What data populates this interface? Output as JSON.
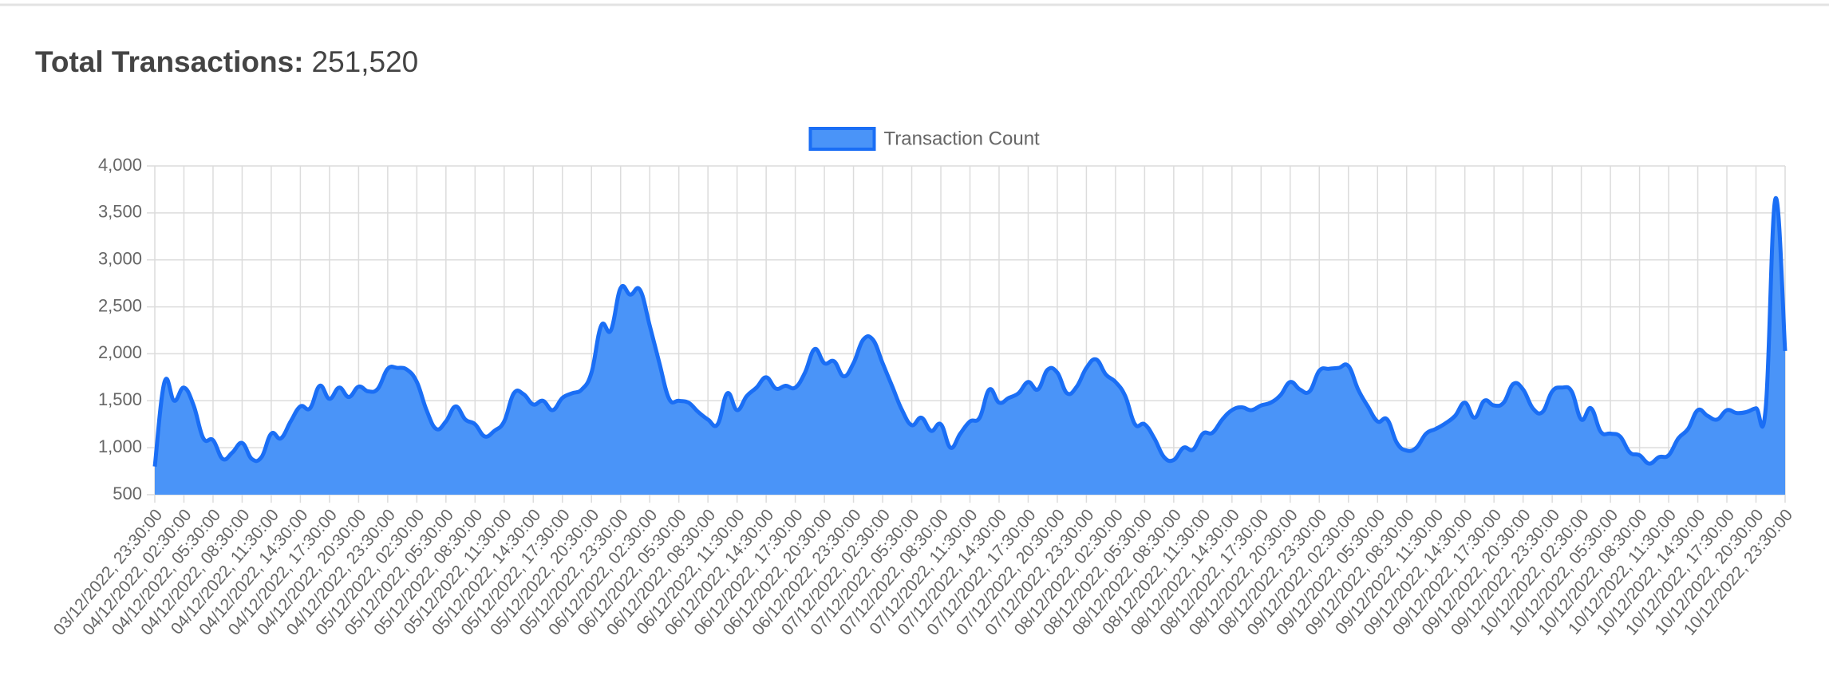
{
  "chart_data": {
    "type": "line",
    "title": "Total Transactions:",
    "title_value": "251,520",
    "legend": "top",
    "grid": true,
    "ylim": [
      500,
      4000
    ],
    "yticks": [
      500,
      {
        "value": 1000,
        "label": "1,000"
      },
      {
        "value": 1500,
        "label": "1,500"
      },
      {
        "value": 2000,
        "label": "2,000"
      },
      {
        "value": 2500,
        "label": "2,500"
      },
      {
        "value": 3000,
        "label": "3,000"
      },
      {
        "value": 3500,
        "label": "3,500"
      },
      {
        "value": 4000,
        "label": "4,000"
      }
    ],
    "categories": [
      "03/12/2022, 23:30:00",
      null,
      null,
      "04/12/2022, 02:30:00",
      null,
      null,
      "04/12/2022, 05:30:00",
      null,
      null,
      "04/12/2022, 08:30:00",
      null,
      null,
      "04/12/2022, 11:30:00",
      null,
      null,
      "04/12/2022, 14:30:00",
      null,
      null,
      "04/12/2022, 17:30:00",
      null,
      null,
      "04/12/2022, 20:30:00",
      null,
      null,
      "04/12/2022, 23:30:00",
      null,
      null,
      "05/12/2022, 02:30:00",
      null,
      null,
      "05/12/2022, 05:30:00",
      null,
      null,
      "05/12/2022, 08:30:00",
      null,
      null,
      "05/12/2022, 11:30:00",
      null,
      null,
      "05/12/2022, 14:30:00",
      null,
      null,
      "05/12/2022, 17:30:00",
      null,
      null,
      "05/12/2022, 20:30:00",
      null,
      null,
      "05/12/2022, 23:30:00",
      null,
      null,
      "06/12/2022, 02:30:00",
      null,
      null,
      "06/12/2022, 05:30:00",
      null,
      null,
      "06/12/2022, 08:30:00",
      null,
      null,
      "06/12/2022, 11:30:00",
      null,
      null,
      "06/12/2022, 14:30:00",
      null,
      null,
      "06/12/2022, 17:30:00",
      null,
      null,
      "06/12/2022, 20:30:00",
      null,
      null,
      "06/12/2022, 23:30:00",
      null,
      null,
      "07/12/2022, 02:30:00",
      null,
      null,
      "07/12/2022, 05:30:00",
      null,
      null,
      "07/12/2022, 08:30:00",
      null,
      null,
      "07/12/2022, 11:30:00",
      null,
      null,
      "07/12/2022, 14:30:00",
      null,
      null,
      "07/12/2022, 17:30:00",
      null,
      null,
      "07/12/2022, 20:30:00",
      null,
      null,
      "07/12/2022, 23:30:00",
      null,
      null,
      "08/12/2022, 02:30:00",
      null,
      null,
      "08/12/2022, 05:30:00",
      null,
      null,
      "08/12/2022, 08:30:00",
      null,
      null,
      "08/12/2022, 11:30:00",
      null,
      null,
      "08/12/2022, 14:30:00",
      null,
      null,
      "08/12/2022, 17:30:00",
      null,
      null,
      "08/12/2022, 20:30:00",
      null,
      null,
      "08/12/2022, 23:30:00",
      null,
      null,
      "09/12/2022, 02:30:00",
      null,
      null,
      "09/12/2022, 05:30:00",
      null,
      null,
      "09/12/2022, 08:30:00",
      null,
      null,
      "09/12/2022, 11:30:00",
      null,
      null,
      "09/12/2022, 14:30:00",
      null,
      null,
      "09/12/2022, 17:30:00",
      null,
      null,
      "09/12/2022, 20:30:00",
      null,
      null,
      "09/12/2022, 23:30:00",
      null,
      null,
      "10/12/2022, 02:30:00",
      null,
      null,
      "10/12/2022, 05:30:00",
      null,
      null,
      "10/12/2022, 08:30:00",
      null,
      null,
      "10/12/2022, 11:30:00",
      null,
      null,
      "10/12/2022, 14:30:00",
      null,
      null,
      "10/12/2022, 17:30:00",
      null,
      null,
      "10/12/2022, 20:30:00",
      null,
      null,
      "10/12/2022, 23:30:00"
    ],
    "series": [
      {
        "name": "Transaction Count",
        "color": "#1a6ef5",
        "fill": "#4a94f8",
        "values": [
          800,
          1700,
          1500,
          1640,
          1450,
          1100,
          1080,
          880,
          950,
          1050,
          880,
          900,
          1150,
          1100,
          1280,
          1440,
          1420,
          1660,
          1520,
          1640,
          1540,
          1650,
          1600,
          1630,
          1840,
          1850,
          1830,
          1700,
          1400,
          1200,
          1280,
          1440,
          1300,
          1250,
          1120,
          1180,
          1280,
          1580,
          1570,
          1460,
          1500,
          1400,
          1530,
          1580,
          1620,
          1800,
          2300,
          2250,
          2700,
          2630,
          2680,
          2300,
          1900,
          1520,
          1500,
          1480,
          1380,
          1300,
          1250,
          1580,
          1400,
          1550,
          1640,
          1750,
          1630,
          1660,
          1640,
          1800,
          2050,
          1900,
          1920,
          1760,
          1900,
          2150,
          2150,
          1900,
          1650,
          1400,
          1240,
          1320,
          1180,
          1250,
          1000,
          1150,
          1280,
          1320,
          1620,
          1480,
          1530,
          1580,
          1700,
          1620,
          1830,
          1800,
          1580,
          1650,
          1850,
          1940,
          1780,
          1700,
          1550,
          1250,
          1250,
          1100,
          900,
          870,
          1000,
          980,
          1150,
          1160,
          1300,
          1400,
          1430,
          1400,
          1450,
          1480,
          1560,
          1700,
          1620,
          1600,
          1820,
          1840,
          1850,
          1870,
          1620,
          1440,
          1280,
          1300,
          1050,
          970,
          1000,
          1150,
          1200,
          1260,
          1340,
          1480,
          1320,
          1500,
          1450,
          1480,
          1680,
          1620,
          1420,
          1380,
          1600,
          1640,
          1600,
          1300,
          1420,
          1170,
          1150,
          1120,
          950,
          920,
          830,
          900,
          920,
          1100,
          1200,
          1400,
          1340,
          1300,
          1400,
          1370,
          1380,
          1420,
          1420,
          3650,
          2030
        ]
      }
    ]
  }
}
